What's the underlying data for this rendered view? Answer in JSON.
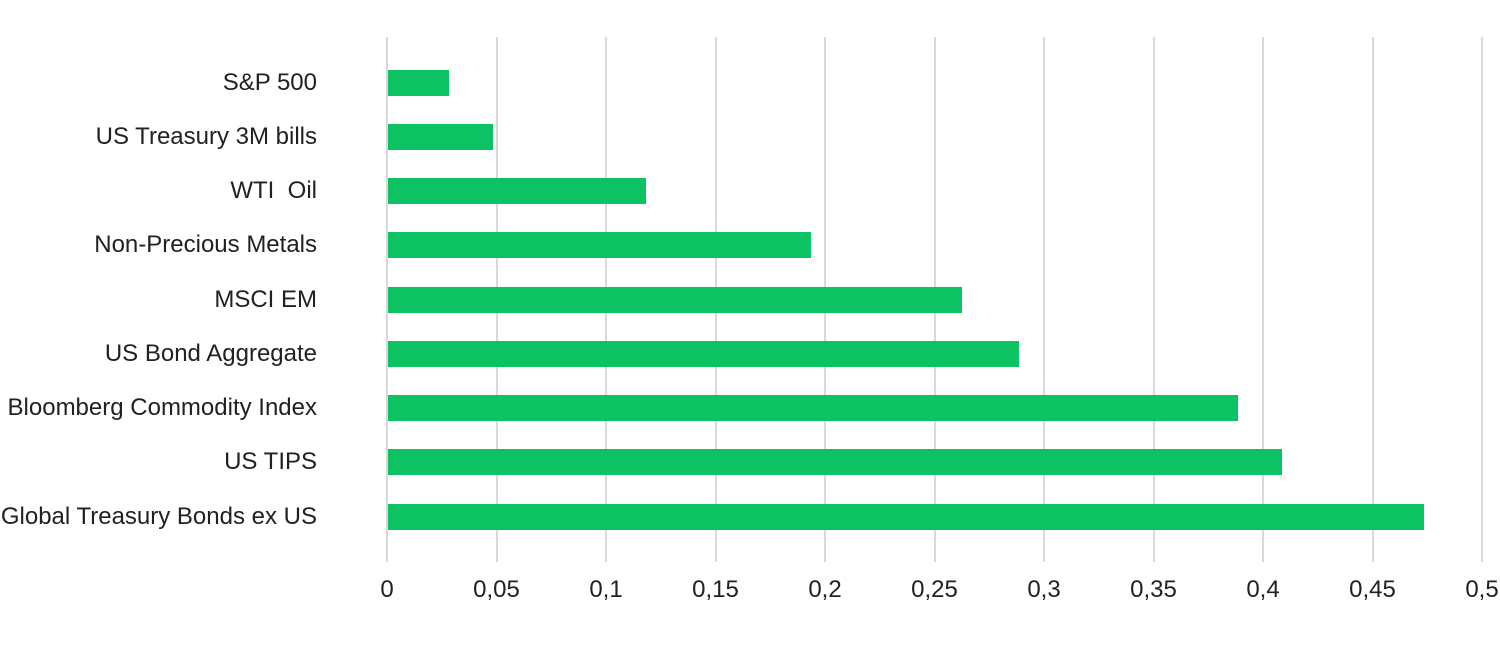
{
  "chart_data": {
    "type": "bar",
    "orientation": "horizontal",
    "title": "",
    "xlabel": "",
    "ylabel": "",
    "categories": [
      "S&P 500",
      "US Treasury 3M bills",
      "WTI  Oil",
      "Non-Precious Metals",
      "MSCI EM",
      "US Bond Aggregate",
      "Bloomberg Commodity Index",
      "US TIPS",
      "Global Treasury Bonds ex US"
    ],
    "values": [
      0.028,
      0.048,
      0.118,
      0.193,
      0.262,
      0.288,
      0.388,
      0.408,
      0.473
    ],
    "xlim": [
      0,
      0.5
    ],
    "x_ticks": [
      0,
      0.05,
      0.1,
      0.15,
      0.2,
      0.25,
      0.3,
      0.35,
      0.4,
      0.45,
      0.5
    ],
    "x_tick_labels": [
      "0",
      "0,05",
      "0,1",
      "0,15",
      "0,2",
      "0,25",
      "0,3",
      "0,35",
      "0,4",
      "0,45",
      "0,5"
    ],
    "grid": true,
    "legend_position": "none",
    "colors": {
      "bar": "#0dc263",
      "gridline": "#d9d9d9",
      "text": "#202124",
      "background": "#ffffff"
    }
  }
}
